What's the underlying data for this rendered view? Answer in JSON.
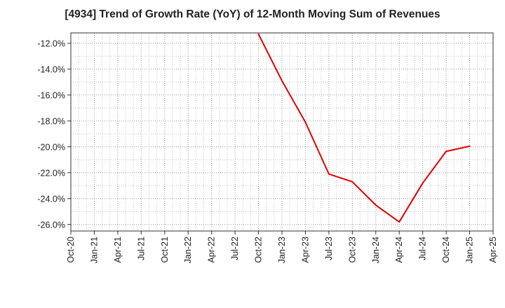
{
  "chart_data": {
    "type": "line",
    "title": "[4934]  Trend of Growth Rate (YoY) of 12-Month Moving Sum of Revenues",
    "xlabel": "",
    "ylabel": "",
    "x_tick_labels": [
      "Oct-20",
      "Jan-21",
      "Apr-21",
      "Jul-21",
      "Oct-21",
      "Jan-22",
      "Apr-22",
      "Jul-22",
      "Oct-22",
      "Jan-23",
      "Apr-23",
      "Jul-23",
      "Oct-23",
      "Jan-24",
      "Apr-24",
      "Jul-24",
      "Oct-24",
      "Jan-25",
      "Apr-25"
    ],
    "y_tick_values": [
      -12.0,
      -14.0,
      -16.0,
      -18.0,
      -20.0,
      -22.0,
      -24.0,
      -26.0
    ],
    "y_tick_labels": [
      "-12.0%",
      "-14.0%",
      "-16.0%",
      "-18.0%",
      "-20.0%",
      "-22.0%",
      "-24.0%",
      "-26.0%"
    ],
    "ylim": [
      -26.5,
      -11.2
    ],
    "xlim": [
      "Oct-20",
      "Apr-25"
    ],
    "grid": true,
    "legend": "none",
    "series": [
      {
        "color": "#e00000",
        "x": [
          "Oct-22",
          "Jan-23",
          "Apr-23",
          "Jul-23",
          "Oct-23",
          "Jan-24",
          "Apr-24",
          "Jul-24",
          "Oct-24",
          "Jan-25"
        ],
        "values": [
          -11.3,
          -14.9,
          -18.1,
          -22.1,
          -22.7,
          -24.5,
          -25.8,
          -22.8,
          -20.35,
          -19.95
        ]
      }
    ]
  }
}
